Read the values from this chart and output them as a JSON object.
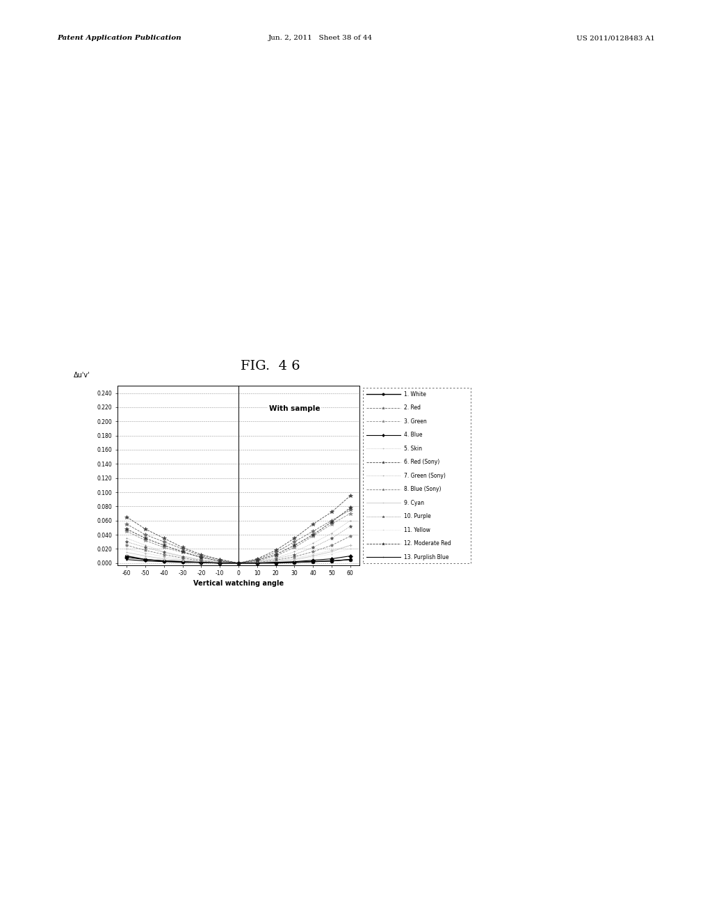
{
  "fig_label": "FIG.  4 6",
  "header_left": "Patent Application Publication",
  "header_mid": "Jun. 2, 2011   Sheet 38 of 44",
  "header_right": "US 2011/0128483 A1",
  "ylabel": "Δu'v'",
  "xlabel": "Vertical watching angle",
  "annotation": "With sample",
  "yticks": [
    0.0,
    0.02,
    0.04,
    0.06,
    0.08,
    0.1,
    0.12,
    0.14,
    0.16,
    0.18,
    0.2,
    0.22,
    0.24
  ],
  "xticks": [
    -60,
    -50,
    -40,
    -30,
    -20,
    -10,
    0,
    10,
    20,
    30,
    40,
    50,
    60
  ],
  "ylim": [
    -0.003,
    0.25
  ],
  "xlim": [
    -65,
    65
  ],
  "legend_entries": [
    "1. White",
    "2. Red",
    "3. Green",
    "4. Blue",
    "5. Skin",
    "6. Red (Sony)",
    "7. Green (Sony)",
    "8. Blue (Sony)",
    "9. Cyan",
    "10. Purple",
    "11. Yellow",
    "12. Moderate Red",
    "13. Purplish Blue"
  ],
  "series": {
    "white": {
      "x": [
        -60,
        -50,
        -40,
        -30,
        -20,
        -10,
        0,
        10,
        20,
        30,
        40,
        50,
        60
      ],
      "y": [
        0.01,
        0.005,
        0.003,
        0.002,
        0.001,
        0.0,
        0.0,
        0.0,
        0.0,
        0.001,
        0.002,
        0.003,
        0.005
      ]
    },
    "red": {
      "x": [
        -60,
        -50,
        -40,
        -30,
        -20,
        -10,
        0,
        10,
        20,
        30,
        40,
        50,
        60
      ],
      "y": [
        0.055,
        0.04,
        0.03,
        0.02,
        0.01,
        0.005,
        0.0,
        0.005,
        0.015,
        0.03,
        0.045,
        0.06,
        0.075
      ]
    },
    "green": {
      "x": [
        -60,
        -50,
        -40,
        -30,
        -20,
        -10,
        0,
        10,
        20,
        30,
        40,
        50,
        60
      ],
      "y": [
        0.045,
        0.032,
        0.022,
        0.015,
        0.008,
        0.003,
        0.0,
        0.003,
        0.01,
        0.022,
        0.038,
        0.055,
        0.07
      ]
    },
    "blue": {
      "x": [
        -60,
        -50,
        -40,
        -30,
        -20,
        -10,
        0,
        10,
        20,
        30,
        40,
        50,
        60
      ],
      "y": [
        0.008,
        0.005,
        0.003,
        0.002,
        0.001,
        0.0,
        0.0,
        0.0,
        0.001,
        0.002,
        0.004,
        0.006,
        0.01
      ]
    },
    "skin": {
      "x": [
        -60,
        -50,
        -40,
        -30,
        -20,
        -10,
        0,
        10,
        20,
        30,
        40,
        50,
        60
      ],
      "y": [
        0.02,
        0.014,
        0.009,
        0.005,
        0.002,
        0.001,
        0.0,
        0.001,
        0.003,
        0.007,
        0.012,
        0.018,
        0.025
      ]
    },
    "red_sony": {
      "x": [
        -60,
        -50,
        -40,
        -30,
        -20,
        -10,
        0,
        10,
        20,
        30,
        40,
        50,
        60
      ],
      "y": [
        0.065,
        0.048,
        0.035,
        0.022,
        0.012,
        0.005,
        0.0,
        0.006,
        0.018,
        0.035,
        0.055,
        0.072,
        0.095
      ]
    },
    "green_sony": {
      "x": [
        -60,
        -50,
        -40,
        -30,
        -20,
        -10,
        0,
        10,
        20,
        30,
        40,
        50,
        60
      ],
      "y": [
        0.035,
        0.025,
        0.016,
        0.01,
        0.005,
        0.002,
        0.0,
        0.002,
        0.007,
        0.016,
        0.028,
        0.042,
        0.06
      ]
    },
    "blue_sony": {
      "x": [
        -60,
        -50,
        -40,
        -30,
        -20,
        -10,
        0,
        10,
        20,
        30,
        40,
        50,
        60
      ],
      "y": [
        0.025,
        0.018,
        0.012,
        0.007,
        0.003,
        0.001,
        0.0,
        0.001,
        0.004,
        0.009,
        0.016,
        0.025,
        0.038
      ]
    },
    "cyan": {
      "x": [
        -60,
        -50,
        -40,
        -30,
        -20,
        -10,
        0,
        10,
        20,
        30,
        40,
        50,
        60
      ],
      "y": [
        0.015,
        0.01,
        0.006,
        0.004,
        0.002,
        0.001,
        0.0,
        0.001,
        0.002,
        0.005,
        0.01,
        0.016,
        0.025
      ]
    },
    "purple": {
      "x": [
        -60,
        -50,
        -40,
        -30,
        -20,
        -10,
        0,
        10,
        20,
        30,
        40,
        50,
        60
      ],
      "y": [
        0.03,
        0.022,
        0.015,
        0.009,
        0.004,
        0.002,
        0.0,
        0.002,
        0.006,
        0.012,
        0.022,
        0.035,
        0.052
      ]
    },
    "yellow": {
      "x": [
        -60,
        -50,
        -40,
        -30,
        -20,
        -10,
        0,
        10,
        20,
        30,
        40,
        50,
        60
      ],
      "y": [
        0.012,
        0.008,
        0.005,
        0.003,
        0.001,
        0.0,
        0.0,
        0.001,
        0.002,
        0.004,
        0.008,
        0.013,
        0.02
      ]
    },
    "moderate_red": {
      "x": [
        -60,
        -50,
        -40,
        -30,
        -20,
        -10,
        0,
        10,
        20,
        30,
        40,
        50,
        60
      ],
      "y": [
        0.048,
        0.035,
        0.025,
        0.016,
        0.008,
        0.003,
        0.0,
        0.004,
        0.012,
        0.025,
        0.04,
        0.058,
        0.078
      ]
    },
    "purplish_blue": {
      "x": [
        -60,
        -50,
        -40,
        -30,
        -20,
        -10,
        0,
        10,
        20,
        30,
        40,
        50,
        60
      ],
      "y": [
        0.005,
        0.003,
        0.002,
        0.001,
        0.001,
        0.0,
        0.0,
        0.0,
        0.001,
        0.001,
        0.002,
        0.003,
        0.005
      ]
    }
  }
}
